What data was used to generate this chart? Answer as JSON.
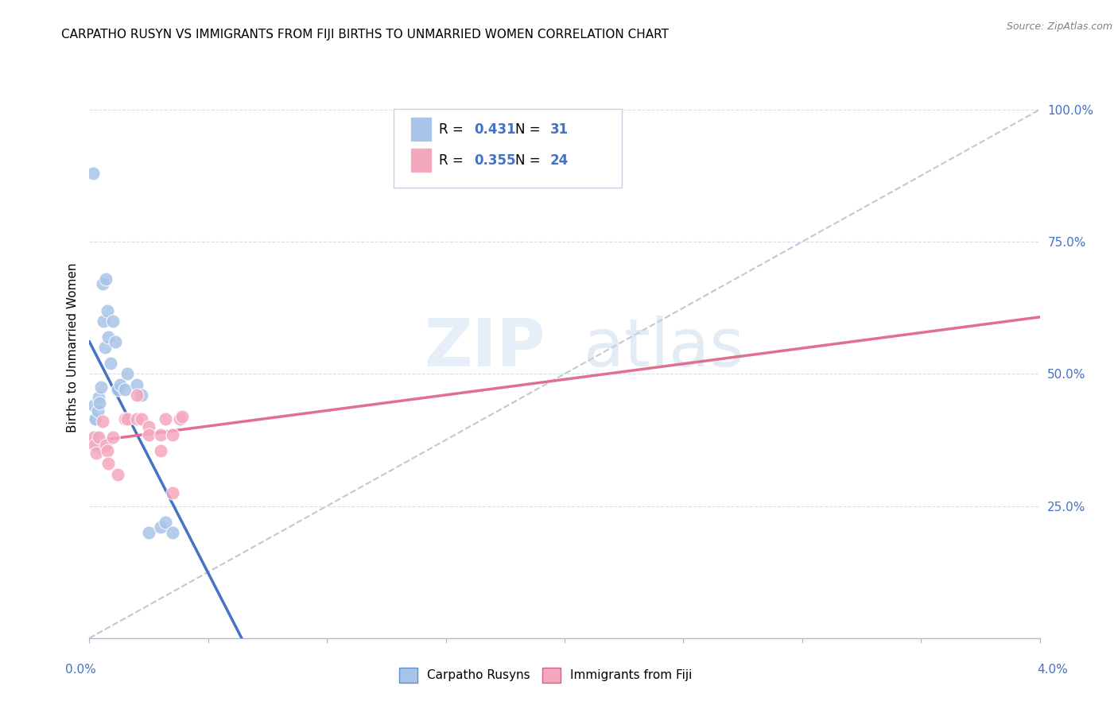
{
  "title": "CARPATHO RUSYN VS IMMIGRANTS FROM FIJI BIRTHS TO UNMARRIED WOMEN CORRELATION CHART",
  "source": "Source: ZipAtlas.com",
  "ylabel": "Births to Unmarried Women",
  "xmin": 0.0,
  "xmax": 0.04,
  "ymin": 0.0,
  "ymax": 1.1,
  "watermark_zip": "ZIP",
  "watermark_atlas": "atlas",
  "blue_R": 0.431,
  "blue_N": 31,
  "pink_R": 0.355,
  "pink_N": 24,
  "blue_color": "#a8c4e8",
  "pink_color": "#f4a8be",
  "blue_line_color": "#4472c4",
  "pink_line_color": "#e07090",
  "ref_line_color": "#c0c8d8",
  "grid_color": "#d8dce8",
  "blue_scatter_x": [
    0.00018,
    0.00022,
    0.00025,
    0.00028,
    0.0003,
    0.00032,
    0.00035,
    0.0004,
    0.00042,
    0.00045,
    0.0005,
    0.00055,
    0.0006,
    0.00065,
    0.0007,
    0.00075,
    0.0008,
    0.0009,
    0.001,
    0.0011,
    0.0012,
    0.0013,
    0.0015,
    0.0016,
    0.002,
    0.0022,
    0.0025,
    0.003,
    0.0032,
    0.0035,
    0.00015
  ],
  "blue_scatter_y": [
    0.44,
    0.415,
    0.415,
    0.38,
    0.38,
    0.365,
    0.43,
    0.455,
    0.445,
    0.36,
    0.475,
    0.67,
    0.6,
    0.55,
    0.68,
    0.62,
    0.57,
    0.52,
    0.6,
    0.56,
    0.47,
    0.48,
    0.47,
    0.5,
    0.48,
    0.46,
    0.2,
    0.21,
    0.22,
    0.2,
    0.88
  ],
  "pink_scatter_x": [
    0.00018,
    0.00022,
    0.00028,
    0.0004,
    0.00055,
    0.0007,
    0.00075,
    0.0008,
    0.001,
    0.0012,
    0.0015,
    0.0016,
    0.002,
    0.0022,
    0.0025,
    0.0025,
    0.003,
    0.003,
    0.0032,
    0.0035,
    0.0035,
    0.0038,
    0.0039,
    0.002
  ],
  "pink_scatter_y": [
    0.38,
    0.365,
    0.35,
    0.38,
    0.41,
    0.365,
    0.355,
    0.33,
    0.38,
    0.31,
    0.415,
    0.415,
    0.415,
    0.415,
    0.4,
    0.385,
    0.385,
    0.355,
    0.415,
    0.385,
    0.275,
    0.415,
    0.42,
    0.46
  ],
  "ytick_vals": [
    0.25,
    0.5,
    0.75,
    1.0
  ],
  "ytick_labels": [
    "25.0%",
    "50.0%",
    "75.0%",
    "100.0%"
  ]
}
